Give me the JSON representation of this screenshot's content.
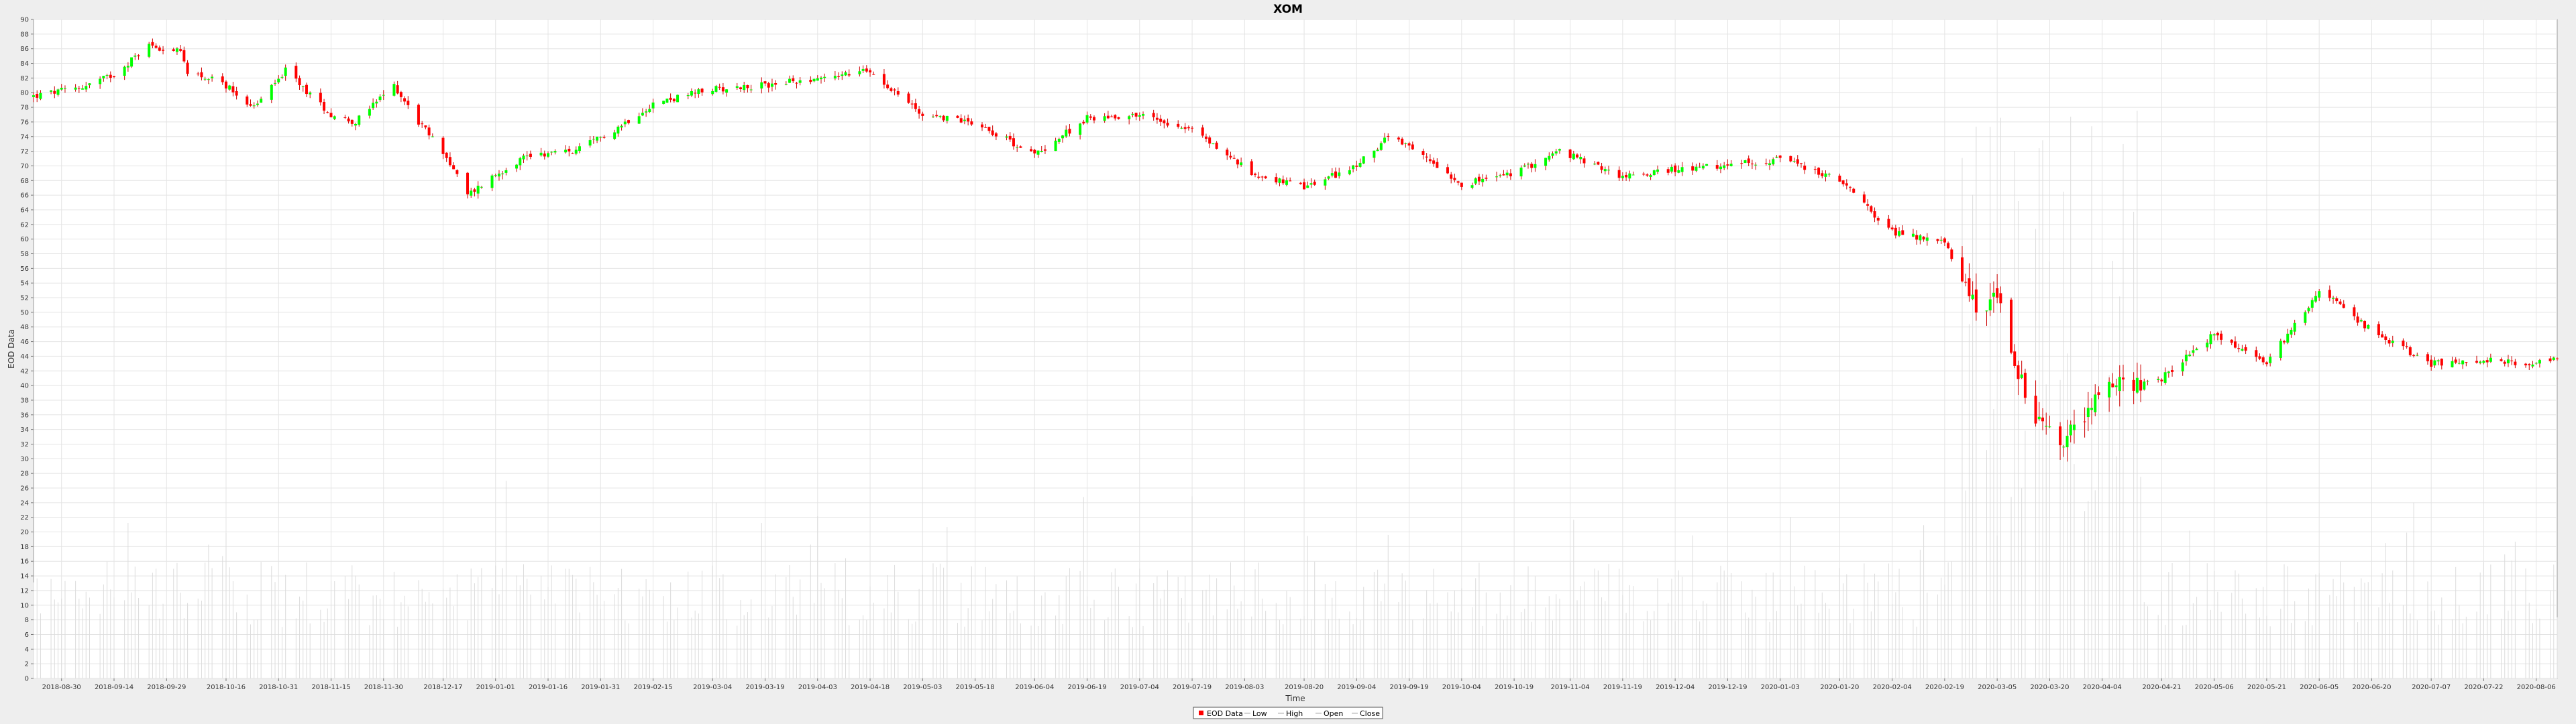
{
  "chart_data": {
    "type": "candlestick",
    "title": "XOM",
    "xlabel": "Time",
    "ylabel": "EOD Data",
    "ylim": [
      0,
      90
    ],
    "yticks": [
      0,
      2,
      4,
      6,
      8,
      10,
      12,
      14,
      16,
      18,
      20,
      22,
      24,
      26,
      28,
      30,
      32,
      34,
      36,
      38,
      40,
      42,
      44,
      46,
      48,
      50,
      52,
      54,
      56,
      58,
      60,
      62,
      64,
      66,
      68,
      70,
      72,
      74,
      76,
      78,
      80,
      82,
      84,
      86,
      88,
      90
    ],
    "x_range": [
      "2018-08-22",
      "2020-08-12"
    ],
    "x_tick_labels": [
      "2018-08-30",
      "2018-09-14",
      "2018-09-29",
      "2018-10-16",
      "2018-10-31",
      "2018-11-15",
      "2018-11-30",
      "2018-12-17",
      "2019-01-01",
      "2019-01-16",
      "2019-01-31",
      "2019-02-15",
      "2019-03-04",
      "2019-03-19",
      "2019-04-03",
      "2019-04-18",
      "2019-05-03",
      "2019-05-18",
      "2019-06-04",
      "2019-06-19",
      "2019-07-04",
      "2019-07-19",
      "2019-08-03",
      "2019-08-20",
      "2019-09-04",
      "2019-09-19",
      "2019-10-04",
      "2019-10-19",
      "2019-11-04",
      "2019-11-19",
      "2019-12-04",
      "2019-12-19",
      "2020-01-03",
      "2020-01-20",
      "2020-02-04",
      "2020-02-19",
      "2020-03-05",
      "2020-03-20",
      "2020-04-04",
      "2020-04-21",
      "2020-05-06",
      "2020-05-21",
      "2020-06-05",
      "2020-06-20",
      "2020-07-07",
      "2020-07-22",
      "2020-08-06"
    ],
    "grid": true,
    "legend_position": "bottom-center",
    "legend": [
      "EOD Data",
      "Low",
      "High",
      "Open",
      "Close"
    ],
    "series": [
      {
        "name": "EOD Data",
        "kind": "candles",
        "up_color": "#00ff00",
        "down_color": "#ff0000"
      },
      {
        "name": "Volume",
        "kind": "bars (scaled, light gray)",
        "color": "#e0e0e0"
      }
    ],
    "close_keypoints": [
      [
        "2018-08-22",
        79.5
      ],
      [
        "2018-09-05",
        80.8
      ],
      [
        "2018-09-14",
        82.5
      ],
      [
        "2018-09-24",
        86.5
      ],
      [
        "2018-10-03",
        85.5
      ],
      [
        "2018-10-05",
        83
      ],
      [
        "2018-10-16",
        81
      ],
      [
        "2018-10-24",
        78
      ],
      [
        "2018-11-02",
        83
      ],
      [
        "2018-11-15",
        77
      ],
      [
        "2018-11-22",
        76
      ],
      [
        "2018-12-03",
        81
      ],
      [
        "2018-12-10",
        76
      ],
      [
        "2018-12-17",
        72
      ],
      [
        "2018-12-24",
        66
      ],
      [
        "2018-12-31",
        68.5
      ],
      [
        "2019-01-10",
        71.5
      ],
      [
        "2019-01-24",
        72
      ],
      [
        "2019-02-04",
        75
      ],
      [
        "2019-02-15",
        78.5
      ],
      [
        "2019-03-04",
        80.5
      ],
      [
        "2019-03-19",
        81
      ],
      [
        "2019-04-03",
        82
      ],
      [
        "2019-04-18",
        83
      ],
      [
        "2019-05-03",
        77
      ],
      [
        "2019-05-18",
        76
      ],
      [
        "2019-06-04",
        71.5
      ],
      [
        "2019-06-19",
        76.5
      ],
      [
        "2019-07-04",
        77
      ],
      [
        "2019-07-19",
        75
      ],
      [
        "2019-08-05",
        69
      ],
      [
        "2019-08-20",
        67
      ],
      [
        "2019-09-04",
        70
      ],
      [
        "2019-09-13",
        74
      ],
      [
        "2019-09-26",
        70.5
      ],
      [
        "2019-10-04",
        67.5
      ],
      [
        "2019-10-19",
        69
      ],
      [
        "2019-11-01",
        72
      ],
      [
        "2019-11-19",
        68.5
      ],
      [
        "2019-12-04",
        69.5
      ],
      [
        "2019-12-19",
        70
      ],
      [
        "2020-01-03",
        71
      ],
      [
        "2020-01-20",
        68
      ],
      [
        "2020-02-04",
        61
      ],
      [
        "2020-02-19",
        59.5
      ],
      [
        "2020-02-28",
        50
      ],
      [
        "2020-03-05",
        52
      ],
      [
        "2020-03-10",
        43
      ],
      [
        "2020-03-16",
        36
      ],
      [
        "2020-03-23",
        31.5
      ],
      [
        "2020-04-06",
        40
      ],
      [
        "2020-04-21",
        41
      ],
      [
        "2020-05-06",
        47
      ],
      [
        "2020-05-21",
        43
      ],
      [
        "2020-06-05",
        53
      ],
      [
        "2020-06-20",
        47.5
      ],
      [
        "2020-07-07",
        43
      ],
      [
        "2020-07-22",
        43.5
      ],
      [
        "2020-08-06",
        43
      ],
      [
        "2020-08-12",
        44
      ]
    ]
  }
}
